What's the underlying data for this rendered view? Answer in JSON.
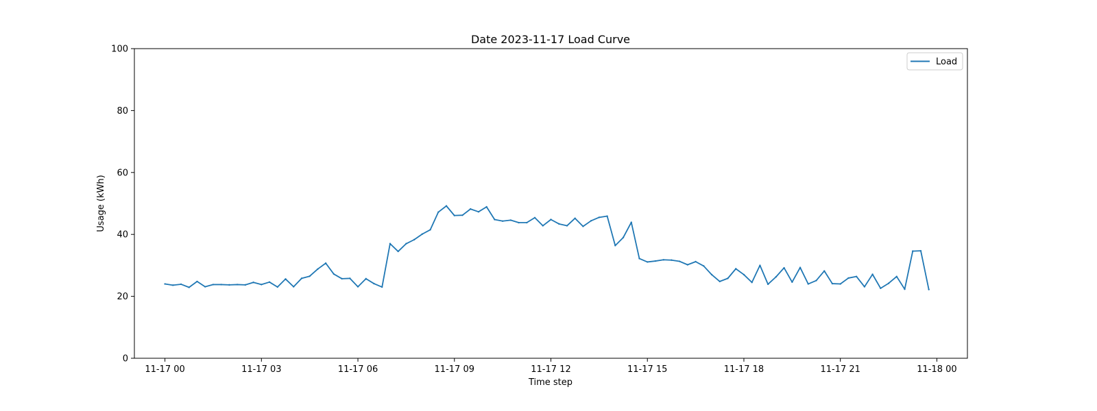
{
  "chart_data": {
    "type": "line",
    "title": "Date 2023-11-17 Load Curve",
    "xlabel": "Time step",
    "ylabel": "Usage (kWh)",
    "ylim": [
      0,
      100
    ],
    "xlim": [
      "2023-11-16 23:03",
      "2023-11-18 00:57"
    ],
    "yticks": [
      0,
      20,
      40,
      60,
      80,
      100
    ],
    "xticks": [
      {
        "value": "2023-11-17 00:00",
        "label": "11-17 00"
      },
      {
        "value": "2023-11-17 03:00",
        "label": "11-17 03"
      },
      {
        "value": "2023-11-17 06:00",
        "label": "11-17 06"
      },
      {
        "value": "2023-11-17 09:00",
        "label": "11-17 09"
      },
      {
        "value": "2023-11-17 12:00",
        "label": "11-17 12"
      },
      {
        "value": "2023-11-17 15:00",
        "label": "11-17 15"
      },
      {
        "value": "2023-11-17 18:00",
        "label": "11-17 18"
      },
      {
        "value": "2023-11-17 21:00",
        "label": "11-17 21"
      },
      {
        "value": "2023-11-18 00:00",
        "label": "11-18 00"
      }
    ],
    "grid": false,
    "legend": {
      "position": "top-right"
    },
    "x": [
      "2023-11-17 00:00",
      "2023-11-17 00:15",
      "2023-11-17 00:30",
      "2023-11-17 00:45",
      "2023-11-17 01:00",
      "2023-11-17 01:15",
      "2023-11-17 01:30",
      "2023-11-17 01:45",
      "2023-11-17 02:00",
      "2023-11-17 02:15",
      "2023-11-17 02:30",
      "2023-11-17 02:45",
      "2023-11-17 03:00",
      "2023-11-17 03:15",
      "2023-11-17 03:30",
      "2023-11-17 03:45",
      "2023-11-17 04:00",
      "2023-11-17 04:15",
      "2023-11-17 04:30",
      "2023-11-17 04:45",
      "2023-11-17 05:00",
      "2023-11-17 05:15",
      "2023-11-17 05:30",
      "2023-11-17 05:45",
      "2023-11-17 06:00",
      "2023-11-17 06:15",
      "2023-11-17 06:30",
      "2023-11-17 06:45",
      "2023-11-17 07:00",
      "2023-11-17 07:15",
      "2023-11-17 07:30",
      "2023-11-17 07:45",
      "2023-11-17 08:00",
      "2023-11-17 08:15",
      "2023-11-17 08:30",
      "2023-11-17 08:45",
      "2023-11-17 09:00",
      "2023-11-17 09:15",
      "2023-11-17 09:30",
      "2023-11-17 09:45",
      "2023-11-17 10:00",
      "2023-11-17 10:15",
      "2023-11-17 10:30",
      "2023-11-17 10:45",
      "2023-11-17 11:00",
      "2023-11-17 11:15",
      "2023-11-17 11:30",
      "2023-11-17 11:45",
      "2023-11-17 12:00",
      "2023-11-17 12:15",
      "2023-11-17 12:30",
      "2023-11-17 12:45",
      "2023-11-17 13:00",
      "2023-11-17 13:15",
      "2023-11-17 13:30",
      "2023-11-17 13:45",
      "2023-11-17 14:00",
      "2023-11-17 14:15",
      "2023-11-17 14:30",
      "2023-11-17 14:45",
      "2023-11-17 15:00",
      "2023-11-17 15:15",
      "2023-11-17 15:30",
      "2023-11-17 15:45",
      "2023-11-17 16:00",
      "2023-11-17 16:15",
      "2023-11-17 16:30",
      "2023-11-17 16:45",
      "2023-11-17 17:00",
      "2023-11-17 17:15",
      "2023-11-17 17:30",
      "2023-11-17 17:45",
      "2023-11-17 18:00",
      "2023-11-17 18:15",
      "2023-11-17 18:30",
      "2023-11-17 18:45",
      "2023-11-17 19:00",
      "2023-11-17 19:15",
      "2023-11-17 19:30",
      "2023-11-17 19:45",
      "2023-11-17 20:00",
      "2023-11-17 20:15",
      "2023-11-17 20:30",
      "2023-11-17 20:45",
      "2023-11-17 21:00",
      "2023-11-17 21:15",
      "2023-11-17 21:30",
      "2023-11-17 21:45",
      "2023-11-17 22:00",
      "2023-11-17 22:15",
      "2023-11-17 22:30",
      "2023-11-17 22:45",
      "2023-11-17 23:00",
      "2023-11-17 23:15",
      "2023-11-17 23:30",
      "2023-11-17 23:45"
    ],
    "series": [
      {
        "name": "Load",
        "color": "#1f77b4",
        "values": [
          24.0,
          23.6,
          23.9,
          22.9,
          24.8,
          23.1,
          23.8,
          23.8,
          23.7,
          23.8,
          23.7,
          24.5,
          23.8,
          24.6,
          23.0,
          25.6,
          23.1,
          25.8,
          26.5,
          28.8,
          30.7,
          27.2,
          25.7,
          25.8,
          23.1,
          25.7,
          24.1,
          23.0,
          37.0,
          34.5,
          37.0,
          38.3,
          40.1,
          41.5,
          47.2,
          49.2,
          46.1,
          46.2,
          48.2,
          47.3,
          48.9,
          44.8,
          44.3,
          44.6,
          43.8,
          43.8,
          45.4,
          42.8,
          44.8,
          43.4,
          42.8,
          45.2,
          42.6,
          44.4,
          45.5,
          45.9,
          36.4,
          39.0,
          43.9,
          32.2,
          31.1,
          31.4,
          31.8,
          31.7,
          31.3,
          30.2,
          31.2,
          29.8,
          27.0,
          24.8,
          25.8,
          28.9,
          27.0,
          24.5,
          30.0,
          23.9,
          26.3,
          29.2,
          24.6,
          29.3,
          24.0,
          25.1,
          28.2,
          24.1,
          24.0,
          25.9,
          26.4,
          23.1,
          27.1,
          22.6,
          24.2,
          26.4,
          22.3,
          34.6,
          34.7,
          22.2
        ]
      }
    ]
  }
}
